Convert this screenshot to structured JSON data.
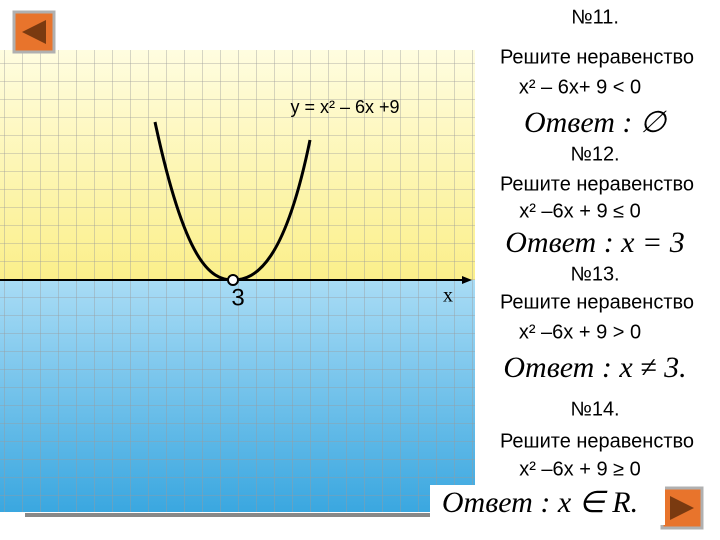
{
  "graph": {
    "formula": "y = x² – 6x +9",
    "vertex_label": "3",
    "axis_label": "x"
  },
  "problems": [
    {
      "number": "№11.",
      "task": "Решите неравенство",
      "inequality": "x² – 6x+ 9 < 0",
      "answer": "Ответ : ∅"
    },
    {
      "number": "№12.",
      "task": "Решите неравенство",
      "inequality": "x² –6x + 9 ≤ 0",
      "answer": "Ответ : x = 3"
    },
    {
      "number": "№13.",
      "task": "Решите неравенство",
      "inequality": "x² –6x + 9 > 0",
      "answer": "Ответ : x ≠ 3."
    },
    {
      "number": "№14.",
      "task": "Решите неравенство",
      "inequality": "x² –6x + 9 ≥ 0",
      "answer": "Ответ : x ∈ R."
    }
  ]
}
